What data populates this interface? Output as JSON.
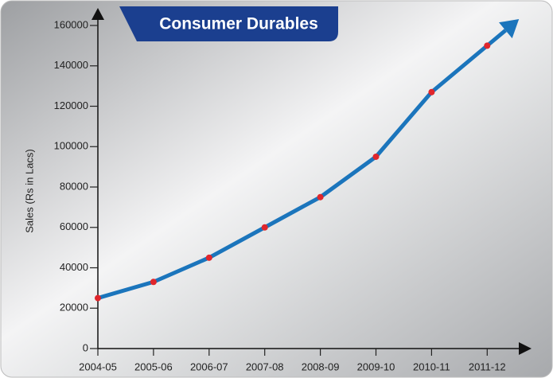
{
  "chart_data": {
    "type": "line",
    "title": "Consumer Durables",
    "y_label": "Sales (Rs in Lacs)",
    "categories": [
      "2004-05",
      "2005-06",
      "2006-07",
      "2007-08",
      "2008-09",
      "2009-10",
      "2010-11",
      "2011-12"
    ],
    "series": [
      {
        "name": "Sales",
        "color": "#1b75bc",
        "marker_color": "#e0262c",
        "values": [
          25000,
          33000,
          45000,
          60000,
          75000,
          95000,
          127000,
          150000
        ]
      }
    ],
    "ylim": [
      0,
      160000
    ],
    "yticks": [
      0,
      20000,
      40000,
      60000,
      80000,
      100000,
      120000,
      140000,
      160000
    ]
  }
}
